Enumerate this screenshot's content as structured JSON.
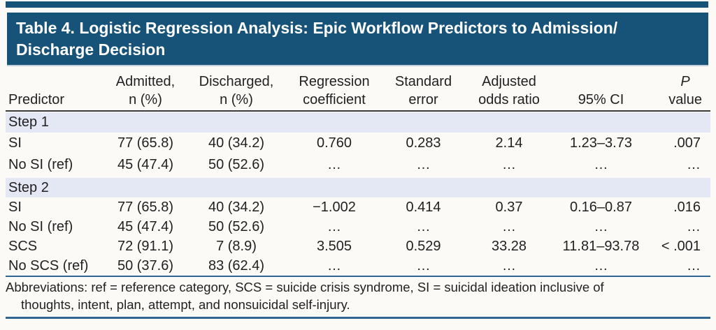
{
  "banner": {
    "title_line1": "Table 4. Logistic Regression Analysis: Epic Workflow Predictors to Admission/",
    "title_line2": "Discharge Decision"
  },
  "table": {
    "headers": [
      {
        "line1": "",
        "line2": "Predictor"
      },
      {
        "line1": "Admitted,",
        "line2": "n (%)"
      },
      {
        "line1": "Discharged,",
        "line2": "n (%)"
      },
      {
        "line1": "Regression",
        "line2": "coefficient"
      },
      {
        "line1": "Standard",
        "line2": "error"
      },
      {
        "line1": "Adjusted",
        "line2": "odds ratio"
      },
      {
        "line1": "",
        "line2": "95% CI"
      },
      {
        "line1": "P",
        "line2": "value"
      }
    ],
    "sections": [
      {
        "label": "Step 1",
        "rows": [
          {
            "cells": [
              "SI",
              "77 (65.8)",
              "40 (34.2)",
              "0.760",
              "0.283",
              "2.14",
              "1.23–3.73",
              ".007"
            ]
          },
          {
            "cells": [
              "No SI (ref)",
              "45 (47.4)",
              "50 (52.6)",
              "…",
              "…",
              "…",
              "…",
              "…"
            ]
          }
        ]
      },
      {
        "label": "Step 2",
        "rows": [
          {
            "cells": [
              "SI",
              "77 (65.8)",
              "40 (34.2)",
              "−1.002",
              "0.414",
              "0.37",
              "0.16–0.87",
              ".016"
            ]
          },
          {
            "cells": [
              "No SI (ref)",
              "45 (47.4)",
              "50 (52.6)",
              "…",
              "…",
              "…",
              "…",
              "…"
            ]
          },
          {
            "cells": [
              "SCS",
              "72 (91.1)",
              "7 (8.9)",
              "3.505",
              "0.529",
              "33.28",
              "11.81–93.78",
              "< .001"
            ]
          },
          {
            "cells": [
              "No SCS (ref)",
              "50 (37.6)",
              "83 (62.4)",
              "…",
              "…",
              "…",
              "…",
              "…"
            ]
          }
        ]
      }
    ]
  },
  "footnote": {
    "line1": "Abbreviations: ref = reference category, SCS = suicide crisis syndrome, SI = suicidal ideation inclusive of",
    "line2": "thoughts, intent, plan, attempt, and nonsuicidal self-injury."
  },
  "colors": {
    "banner_bg": "#175379",
    "band_bg": "#e3e8f4",
    "rule_blue": "#2f6493",
    "header_rule": "#3a3a3a",
    "text": "#231f20",
    "title_text": "#ffffff"
  }
}
